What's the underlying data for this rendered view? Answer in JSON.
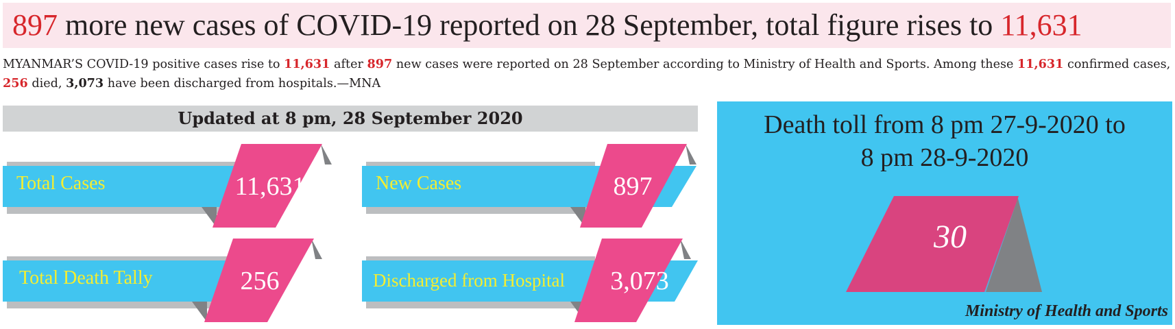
{
  "headline": {
    "new_cases": "897",
    "text_a": " more new cases of COVID-19 reported on 28 September, total figure rises to ",
    "total": "11,631"
  },
  "intro": {
    "p1": "MYANMAR’S COVID-19 positive cases rise to ",
    "total": "11,631",
    "p2": " after ",
    "new_cases": "897",
    "p3": " new cases were reported on 28 September according to Ministry of Health and Sports. Among these ",
    "total2": "11,631",
    "p4": " confirmed cases, ",
    "deaths": "256",
    "p5": " died, ",
    "discharged": "3,073",
    "p6": " have been discharged from hospitals.—MNA"
  },
  "updated": "Updated at 8 pm, 28 September 2020",
  "tiles": [
    {
      "label": "Total Cases",
      "value": "11,631"
    },
    {
      "label": "New Cases",
      "value": "897"
    },
    {
      "label": "Total Death Tally",
      "value": "256"
    },
    {
      "label": "Discharged from Hospital",
      "value": "3,073"
    }
  ],
  "death_toll": {
    "title_line1": "Death toll from 8 pm 27-9-2020 to",
    "title_line2": "8 pm 28-9-2020",
    "value": "30"
  },
  "source": "Ministry of Health and Sports",
  "colors": {
    "cyan": "#41c5f0",
    "pink": "#ec4a8c",
    "gray": "#808285",
    "shadow": "#bcbec0",
    "label_yellow": "#f5ee30",
    "red": "#d7262b"
  }
}
